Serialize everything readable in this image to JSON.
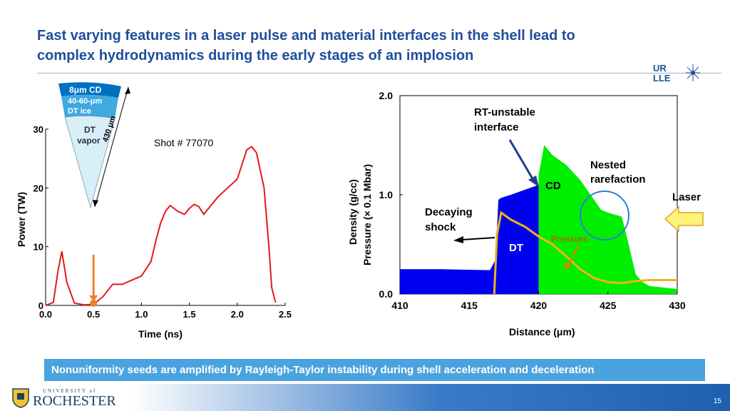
{
  "title": {
    "line1": "Fast varying features in a laser pulse and material interfaces in the shell lead to",
    "line2": "complex hydrodynamics during the early stages of an implosion"
  },
  "logo": {
    "line1": "UR",
    "line2": "LLE"
  },
  "wedge": {
    "cd": "8μm CD",
    "ice1": "40-60-μm",
    "ice2": "DT ice",
    "vap1": "DT",
    "vap2": "vapor",
    "radius": "430 μm"
  },
  "left_chart": {
    "shot_label": "Shot # 77070",
    "xlabel": "Time (ns)",
    "ylabel": "Power (TW)",
    "xticks": [
      "0.0",
      "0.5",
      "1.0",
      "1.5",
      "2.0",
      "2.5"
    ],
    "yticks": [
      "0",
      "10",
      "20",
      "30"
    ]
  },
  "right_chart": {
    "xlabel": "Distance (μm)",
    "ylabel1": "Density (g/cc)",
    "ylabel2": "Pressure (× 0.1 Mbar)",
    "xticks": [
      "410",
      "415",
      "420",
      "425",
      "430"
    ],
    "yticks": [
      "0.0",
      "1.0",
      "2.0"
    ],
    "annotations": {
      "rt1": "RT-unstable",
      "rt2": "interface",
      "nested1": "Nested",
      "nested2": "rarefaction",
      "laser": "Laser",
      "decay1": "Decaying",
      "decay2": "shock",
      "cd": "CD",
      "dt": "DT",
      "pressure": "Pressure"
    }
  },
  "chart_data": [
    {
      "type": "line",
      "title": "Shot # 77070",
      "xlabel": "Time (ns)",
      "ylabel": "Power (TW)",
      "xlim": [
        0,
        2.5
      ],
      "ylim": [
        0,
        30
      ],
      "series": [
        {
          "x": [
            0.0,
            0.08,
            0.13,
            0.17,
            0.22,
            0.3,
            0.4,
            0.5,
            0.6,
            0.7,
            0.8,
            1.0,
            1.1,
            1.15,
            1.2,
            1.25,
            1.3,
            1.38,
            1.45,
            1.5,
            1.55,
            1.6,
            1.65,
            1.7,
            1.8,
            1.9,
            2.0,
            2.05,
            2.1,
            2.15,
            2.2,
            2.28,
            2.33,
            2.36,
            2.4
          ],
          "y": [
            0,
            0.5,
            6,
            9.2,
            4,
            0.4,
            0.1,
            0.2,
            1.5,
            3.6,
            3.6,
            5,
            7.5,
            11,
            14,
            16,
            17,
            16,
            15.5,
            16.5,
            17.2,
            16.8,
            15.5,
            16.5,
            18.5,
            20,
            21.5,
            24,
            26.5,
            27,
            26,
            20,
            10,
            3,
            0.5
          ]
        }
      ]
    },
    {
      "type": "area",
      "xlabel": "Distance (μm)",
      "ylabel": "Density (g/cc) / Pressure (× 0.1 Mbar)",
      "xlim": [
        410,
        430
      ],
      "ylim": [
        0,
        2
      ],
      "series": [
        {
          "name": "DT",
          "color": "#0000f0",
          "x": [
            410,
            413,
            416.5,
            416.9,
            417.1,
            417.3,
            418,
            419,
            420
          ],
          "y": [
            0.25,
            0.25,
            0.24,
            0.35,
            0.95,
            0.97,
            1.0,
            1.05,
            1.1
          ]
        },
        {
          "name": "CD",
          "color": "#00ee00",
          "x": [
            420,
            420.4,
            421,
            422,
            423,
            424,
            424.5,
            425,
            426,
            426.5,
            427,
            427.5,
            428,
            430
          ],
          "y": [
            1.2,
            1.5,
            1.4,
            1.3,
            1.15,
            0.95,
            0.85,
            0.82,
            0.78,
            0.5,
            0.2,
            0.12,
            0.08,
            0.05
          ]
        },
        {
          "name": "Pressure",
          "color": "#f2b318",
          "x": [
            416.8,
            417.0,
            417.3,
            418,
            419,
            420,
            421,
            422,
            423,
            424,
            425,
            426,
            427,
            428,
            430
          ],
          "y": [
            0.0,
            0.6,
            0.82,
            0.75,
            0.68,
            0.58,
            0.5,
            0.38,
            0.25,
            0.16,
            0.12,
            0.11,
            0.13,
            0.14,
            0.14
          ]
        }
      ]
    }
  ],
  "banner": "Nonuniformity seeds are amplified by Rayleigh-Taylor instability during shell acceleration and deceleration",
  "footer": {
    "uni_small": "UNIVERSITY of",
    "uni_big": "ROCHESTER",
    "page": "15"
  }
}
